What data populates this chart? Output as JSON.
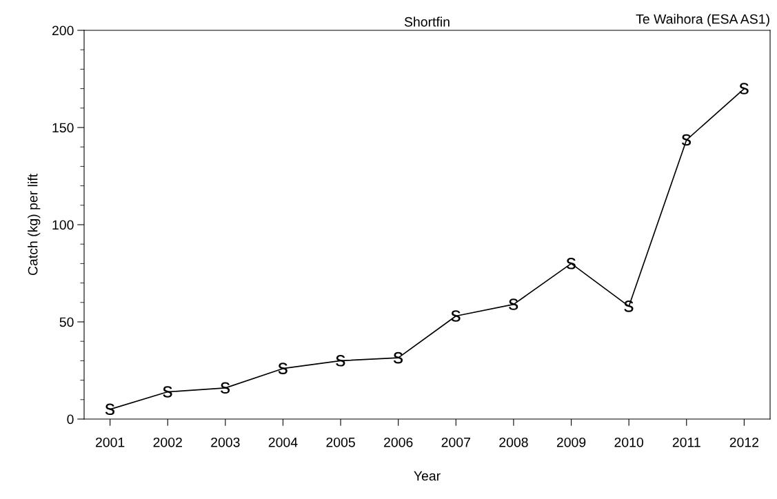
{
  "chart_data": {
    "type": "line",
    "title": "Shortfin",
    "annotations": [
      "Te Waihora (ESA AS1)"
    ],
    "xlabel": "Year",
    "ylabel": "Catch (kg) per lift",
    "x": [
      2001,
      2002,
      2003,
      2004,
      2005,
      2006,
      2007,
      2008,
      2009,
      2010,
      2011,
      2012
    ],
    "series": [
      {
        "color": "#000000",
        "values": [
          5,
          14,
          16,
          26,
          30,
          31.5,
          53,
          59,
          80,
          58,
          143.6,
          170
        ]
      }
    ],
    "xlim": [
      2000.55,
      2012.45
    ],
    "xticks": [
      2001,
      2002,
      2003,
      2004,
      2005,
      2006,
      2007,
      2008,
      2009,
      2010,
      2011,
      2012
    ],
    "ylim": [
      0,
      200
    ],
    "yticks": [
      0,
      50,
      100,
      150,
      200
    ],
    "grid": false,
    "legend": false,
    "marker": "s",
    "line_style": "solid"
  }
}
